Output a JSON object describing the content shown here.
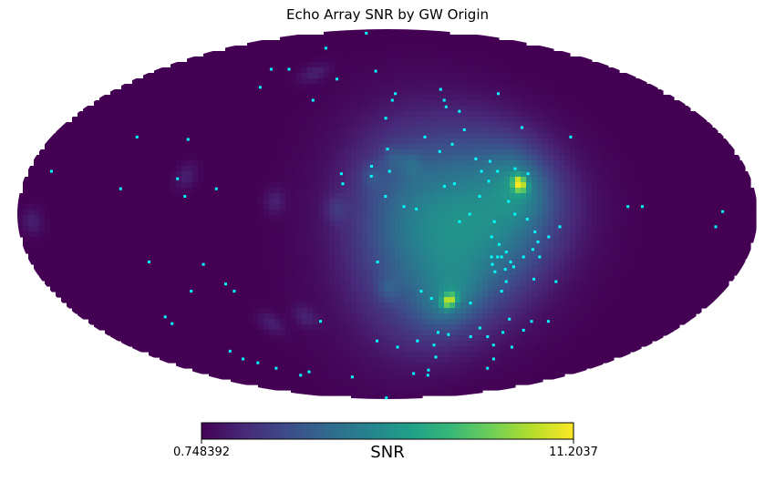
{
  "chart_data": {
    "type": "heatmap",
    "projection": "mollweide",
    "title": "Echo Array SNR by GW Origin",
    "colorbar": {
      "label": "SNR",
      "min_label": "0.748392",
      "max_label": "11.2037",
      "min": 0.748392,
      "max": 11.2037,
      "colormap": "viridis",
      "orientation": "horizontal"
    },
    "colormap_stops": [
      "#440154",
      "#482878",
      "#3e4989",
      "#31688e",
      "#26828e",
      "#1f9e89",
      "#35b779",
      "#6ece58",
      "#b5de2b",
      "#fde725"
    ],
    "background_level": 0.748392,
    "glow_regions": [
      {
        "lon": 30,
        "lat": -12,
        "peak_snr": 5.0,
        "spread_deg": 55
      },
      {
        "lon": 62,
        "lat": 6,
        "peak_snr": 3.2,
        "spread_deg": 40
      },
      {
        "lon": 8,
        "lat": 8,
        "peak_snr": 2.0,
        "spread_deg": 45
      }
    ],
    "hotspots": [
      {
        "lon": 65,
        "lat": 12,
        "snr": 11.2
      },
      {
        "lon": 34,
        "lat": -35,
        "snr": 10.2
      }
    ],
    "faint_spots": [
      {
        "lon": -55,
        "lat": 60
      },
      {
        "lon": 12,
        "lat": 20
      },
      {
        "lon": -55,
        "lat": 5
      },
      {
        "lon": -25,
        "lat": 2
      },
      {
        "lon": -48,
        "lat": -42
      },
      {
        "lon": -70,
        "lat": -45
      },
      {
        "lon": -100,
        "lat": 15
      },
      {
        "lon": -173,
        "lat": -3
      },
      {
        "lon": 0,
        "lat": -30
      },
      {
        "lon": -8,
        "lat": 15
      },
      {
        "lon": 3,
        "lat": 22
      }
    ],
    "point_color": "#00ffff",
    "origins": [
      {
        "lon": -50,
        "lat": 85
      },
      {
        "lon": -68,
        "lat": 74
      },
      {
        "lon": -91,
        "lat": 62
      },
      {
        "lon": -77,
        "lat": 62
      },
      {
        "lon": -85,
        "lat": 53
      },
      {
        "lon": -36,
        "lat": 57
      },
      {
        "lon": -46,
        "lat": 47
      },
      {
        "lon": -134,
        "lat": 31
      },
      {
        "lon": -106,
        "lat": 30
      },
      {
        "lon": -168,
        "lat": 17
      },
      {
        "lon": -131,
        "lat": 10
      },
      {
        "lon": -104,
        "lat": 14
      },
      {
        "lon": -99,
        "lat": 7
      },
      {
        "lon": -84,
        "lat": 10
      },
      {
        "lon": -9,
        "lat": 61
      },
      {
        "lon": 5,
        "lat": 50
      },
      {
        "lon": 3,
        "lat": 47
      },
      {
        "lon": -1,
        "lat": 39
      },
      {
        "lon": 0,
        "lat": 26
      },
      {
        "lon": -23,
        "lat": 16
      },
      {
        "lon": -22,
        "lat": 12
      },
      {
        "lon": -8,
        "lat": 19
      },
      {
        "lon": -8,
        "lat": 15
      },
      {
        "lon": 1,
        "lat": 17
      },
      {
        "lon": -1,
        "lat": 7
      },
      {
        "lon": 8,
        "lat": 3
      },
      {
        "lon": 14,
        "lat": 2
      },
      {
        "lon": 35,
        "lat": 52
      },
      {
        "lon": 35,
        "lat": 47
      },
      {
        "lon": 35,
        "lat": 44
      },
      {
        "lon": 42,
        "lat": 42
      },
      {
        "lon": 42,
        "lat": 34
      },
      {
        "lon": 20,
        "lat": 31
      },
      {
        "lon": 45,
        "lat": 22
      },
      {
        "lon": 47,
        "lat": 17
      },
      {
        "lon": 52,
        "lat": 21
      },
      {
        "lon": 55,
        "lat": 17
      },
      {
        "lon": 34,
        "lat": 28
      },
      {
        "lon": 27,
        "lat": 25
      },
      {
        "lon": 28,
        "lat": 11
      },
      {
        "lon": 33,
        "lat": 12
      },
      {
        "lon": 50,
        "lat": 13
      },
      {
        "lon": 71,
        "lat": 50
      },
      {
        "lon": 74,
        "lat": 35
      },
      {
        "lon": 70,
        "lat": 16
      },
      {
        "lon": 98,
        "lat": 31
      },
      {
        "lon": 117,
        "lat": 3
      },
      {
        "lon": 124,
        "lat": 3
      },
      {
        "lon": 45,
        "lat": 7
      },
      {
        "lon": 59,
        "lat": 5
      },
      {
        "lon": 64,
        "lat": 18
      },
      {
        "lon": 35,
        "lat": -3
      },
      {
        "lon": 40,
        "lat": 0
      },
      {
        "lon": 52,
        "lat": -3
      },
      {
        "lon": 51,
        "lat": -9
      },
      {
        "lon": 55,
        "lat": -12
      },
      {
        "lon": 62,
        "lat": 0
      },
      {
        "lon": 68,
        "lat": -2
      },
      {
        "lon": 72,
        "lat": -7
      },
      {
        "lon": 74,
        "lat": -11
      },
      {
        "lon": 79,
        "lat": -9
      },
      {
        "lon": 84,
        "lat": -5
      },
      {
        "lon": 52,
        "lat": -17
      },
      {
        "lon": 55,
        "lat": -17
      },
      {
        "lon": 57,
        "lat": -17
      },
      {
        "lon": 59,
        "lat": -15
      },
      {
        "lon": 62,
        "lat": -19
      },
      {
        "lon": 64,
        "lat": -21
      },
      {
        "lon": 68,
        "lat": -17
      },
      {
        "lon": 72,
        "lat": -14
      },
      {
        "lon": 76,
        "lat": -17
      },
      {
        "lon": 53,
        "lat": -20
      },
      {
        "lon": 55,
        "lat": -23
      },
      {
        "lon": 60,
        "lat": -22
      },
      {
        "lon": 62,
        "lat": -27
      },
      {
        "lon": 76,
        "lat": -26
      },
      {
        "lon": 88,
        "lat": -27
      },
      {
        "lon": 18,
        "lat": -31
      },
      {
        "lon": 24,
        "lat": -34
      },
      {
        "lon": 46,
        "lat": -36
      },
      {
        "lon": 61,
        "lat": -31
      },
      {
        "lon": 72,
        "lat": -43
      },
      {
        "lon": 86,
        "lat": -44
      },
      {
        "lon": 96,
        "lat": -44
      },
      {
        "lon": 32,
        "lat": -49
      },
      {
        "lon": 39,
        "lat": -50
      },
      {
        "lon": 54,
        "lat": -51
      },
      {
        "lon": 57,
        "lat": -47
      },
      {
        "lon": 65,
        "lat": -51
      },
      {
        "lon": 73,
        "lat": -49
      },
      {
        "lon": 73,
        "lat": -55
      },
      {
        "lon": 85,
        "lat": -48
      },
      {
        "lon": 87,
        "lat": -56
      },
      {
        "lon": 83,
        "lat": -62
      },
      {
        "lon": 88,
        "lat": -67
      },
      {
        "lon": 20,
        "lat": -53
      },
      {
        "lon": 32,
        "lat": -55
      },
      {
        "lon": 37,
        "lat": -61
      },
      {
        "lon": 37,
        "lat": -68
      },
      {
        "lon": 40,
        "lat": -71
      },
      {
        "lon": 25,
        "lat": -70
      },
      {
        "lon": -7,
        "lat": -53
      },
      {
        "lon": 7,
        "lat": -56
      },
      {
        "lon": -5,
        "lat": -19
      },
      {
        "lon": -120,
        "lat": -19
      },
      {
        "lon": -93,
        "lat": -20
      },
      {
        "lon": -85,
        "lat": -28
      },
      {
        "lon": -82,
        "lat": -31
      },
      {
        "lon": -105,
        "lat": -31
      },
      {
        "lon": -130,
        "lat": -42
      },
      {
        "lon": -130,
        "lat": -45
      },
      {
        "lon": -114,
        "lat": -58
      },
      {
        "lon": -113,
        "lat": -62
      },
      {
        "lon": -106,
        "lat": -64
      },
      {
        "lon": -98,
        "lat": -67
      },
      {
        "lon": -86,
        "lat": -71
      },
      {
        "lon": -73,
        "lat": -69
      },
      {
        "lon": -40,
        "lat": -44
      },
      {
        "lon": -36,
        "lat": -72
      },
      {
        "lon": -5,
        "lat": -88
      },
      {
        "lon": 163,
        "lat": 1
      },
      {
        "lon": 160,
        "lat": -5
      }
    ]
  }
}
